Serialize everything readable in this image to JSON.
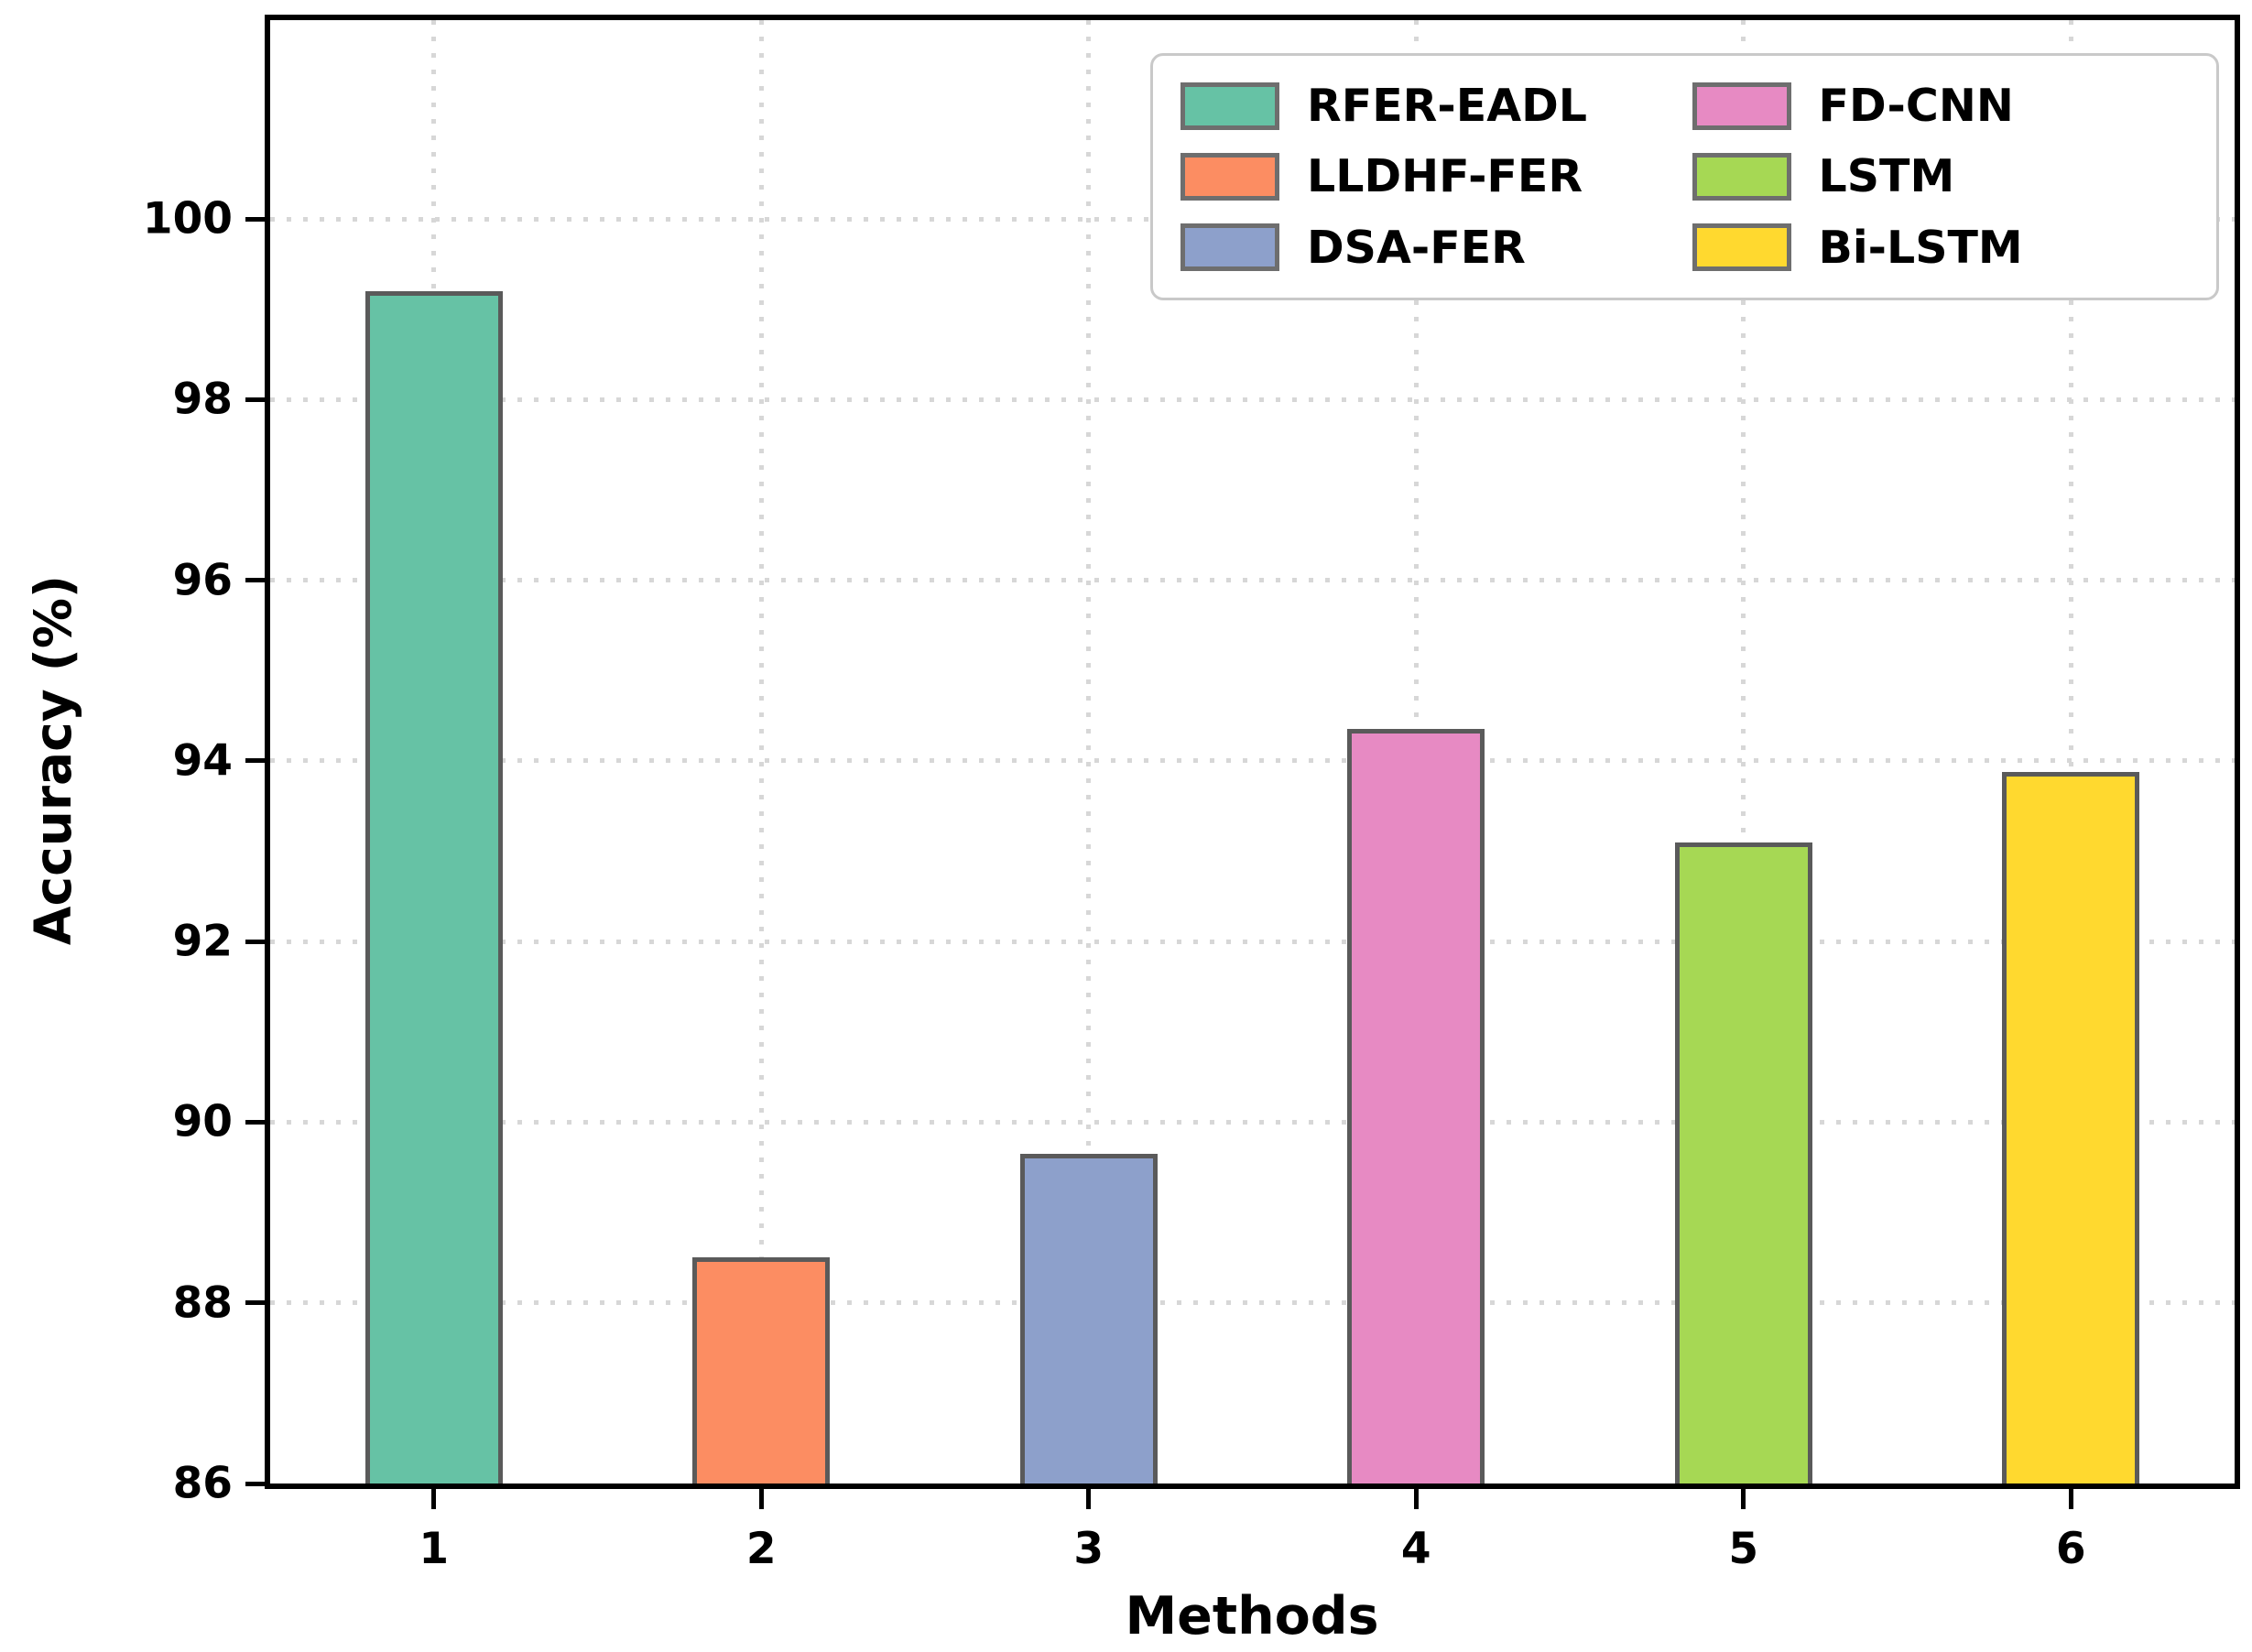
{
  "chart_data": {
    "type": "bar",
    "title": "",
    "xlabel": "Methods",
    "ylabel": "Accuracy (%)",
    "categories": [
      "1",
      "2",
      "3",
      "4",
      "5",
      "6"
    ],
    "series": [
      {
        "name": "RFER-EADL",
        "category": "1",
        "value": 99.2,
        "color": "#66c2a5"
      },
      {
        "name": "LLDHF-FER",
        "category": "2",
        "value": 88.5,
        "color": "#fc8d62"
      },
      {
        "name": "DSA-FER",
        "category": "3",
        "value": 89.65,
        "color": "#8da0cb"
      },
      {
        "name": "FD-CNN",
        "category": "4",
        "value": 94.35,
        "color": "#e78ac3"
      },
      {
        "name": "LSTM",
        "category": "5",
        "value": 93.1,
        "color": "#a6d854"
      },
      {
        "name": "Bi-LSTM",
        "category": "6",
        "value": 93.88,
        "color": "#ffd92f"
      }
    ],
    "ylim": [
      86,
      102.2
    ],
    "yticks": [
      86,
      88,
      90,
      92,
      94,
      96,
      98,
      100
    ],
    "grid": true,
    "grid_style": "dotted",
    "legend_position": "upper-right",
    "legend_columns": 2,
    "legend_order": [
      "RFER-EADL",
      "LLDHF-FER",
      "DSA-FER",
      "FD-CNN",
      "LSTM",
      "Bi-LSTM"
    ],
    "bar_edge_color": "#5a5a5a",
    "axis_color": "#000000",
    "gridline_color": "#d7d7d7",
    "background_color": "#ffffff"
  }
}
